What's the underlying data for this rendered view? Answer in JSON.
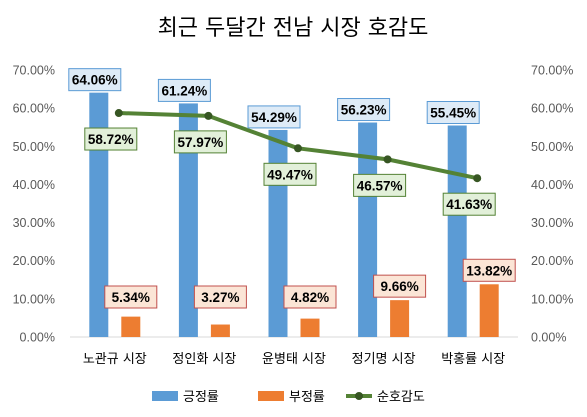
{
  "chart_data": {
    "type": "bar",
    "title": "최근 두달간 전남 시장 호감도",
    "categories": [
      "노관규 시장",
      "정인화 시장",
      "윤병태 시장",
      "정기명 시장",
      "박홍률 시장"
    ],
    "series": [
      {
        "name": "긍정률",
        "kind": "bar",
        "color": "#5b9bd5",
        "label_bg": "#deebf7",
        "label_border": "#5b9bd5",
        "values": [
          64.06,
          61.24,
          54.29,
          56.23,
          55.45
        ]
      },
      {
        "name": "부정률",
        "kind": "bar",
        "color": "#ed7d31",
        "label_bg": "#fbe5d6",
        "label_border": "#c0504d",
        "values": [
          5.34,
          3.27,
          4.82,
          9.66,
          13.82
        ]
      },
      {
        "name": "순호감도",
        "kind": "line",
        "color": "#548235",
        "label_bg": "#e2f0d9",
        "label_border": "#548235",
        "values": [
          58.72,
          57.97,
          49.47,
          46.57,
          41.63
        ]
      }
    ],
    "ylim": [
      0,
      70
    ],
    "yticks": [
      "0.00%",
      "10.00%",
      "20.00%",
      "30.00%",
      "40.00%",
      "50.00%",
      "60.00%",
      "70.00%"
    ],
    "value_suffix": "%",
    "grid": false,
    "legend": "bottom"
  }
}
